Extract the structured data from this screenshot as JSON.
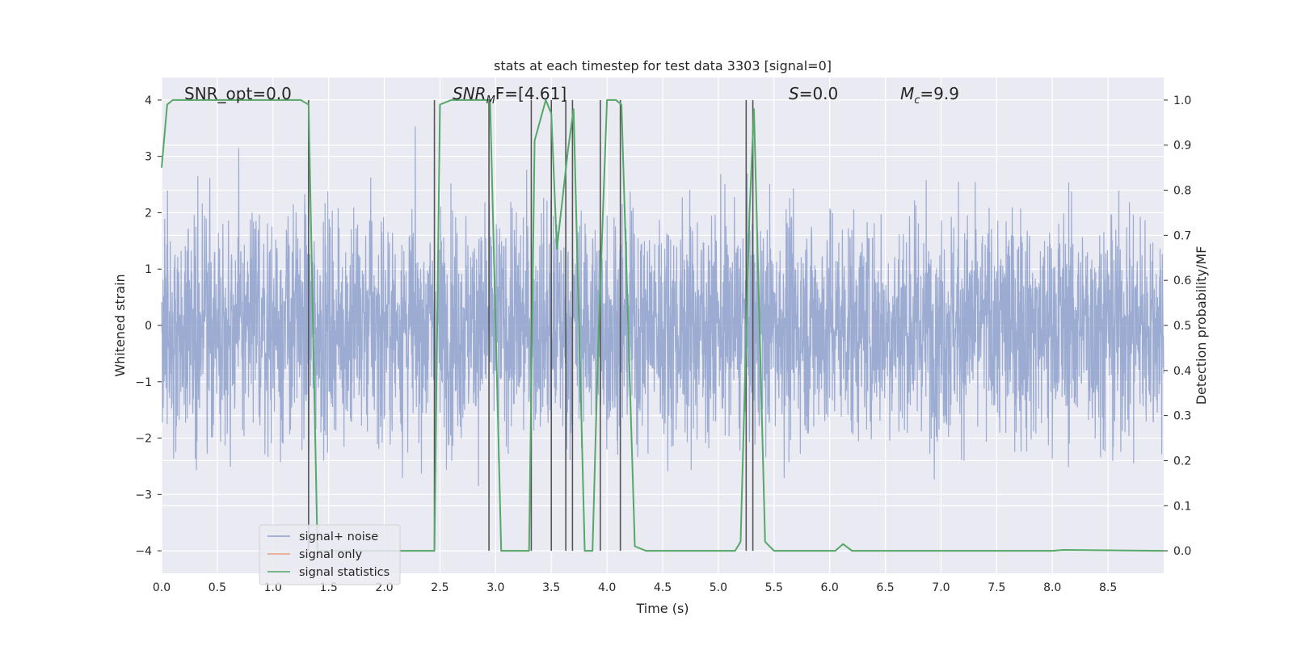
{
  "chart_data": {
    "type": "line",
    "title": "stats at each timestep for test data 3303 [signal=0]",
    "xlabel": "Time (s)",
    "ylabel_left": "Whitened strain",
    "ylabel_right": "Detection probability/MF",
    "xlim": [
      0,
      9.0
    ],
    "ylim_left": [
      -4.4,
      4.4
    ],
    "ylim_right": [
      -0.05,
      1.05
    ],
    "x_ticks": [
      "0.0",
      "0.5",
      "1.0",
      "1.5",
      "2.0",
      "2.5",
      "3.0",
      "3.5",
      "4.0",
      "4.5",
      "5.0",
      "5.5",
      "6.0",
      "6.5",
      "7.0",
      "7.5",
      "8.0",
      "8.5"
    ],
    "y_ticks_left": [
      "−4",
      "−3",
      "−2",
      "−1",
      "0",
      "1",
      "2",
      "3",
      "4"
    ],
    "y_ticks_right": [
      "0.0",
      "0.1",
      "0.2",
      "0.3",
      "0.4",
      "0.5",
      "0.6",
      "0.7",
      "0.8",
      "0.9",
      "1.0"
    ],
    "grid": true,
    "background": "#eaeaf2",
    "annotations": [
      {
        "label": "snr-opt",
        "text": "SNR_opt=0.0"
      },
      {
        "label": "snr-mf",
        "text": "SNR_MF=[4.61]",
        "main": "SNR",
        "sub": "M",
        "rest": "F=[4.61]"
      },
      {
        "label": "s-value",
        "text": "S=0.0",
        "main": "S",
        "rest": "=0.0"
      },
      {
        "label": "mc-value",
        "text": "M_c=9.9",
        "main": "M",
        "sub": "c",
        "rest": "=9.9"
      }
    ],
    "series": [
      {
        "name": "signal+ noise",
        "color": "#8da0cb",
        "axis": "left",
        "envelope_approx": {
          "max_abs": 4.0,
          "typical_range": [
            -1.6,
            1.6
          ]
        }
      },
      {
        "name": "signal only",
        "color": "#e89e7a",
        "axis": "left",
        "values": []
      },
      {
        "name": "signal statistics",
        "color": "#55a868",
        "axis": "right",
        "x": [
          0.0,
          0.05,
          0.1,
          1.25,
          1.32,
          1.4,
          2.45,
          2.5,
          2.6,
          2.95,
          3.05,
          3.2,
          3.3,
          3.35,
          3.45,
          3.5,
          3.55,
          3.65,
          3.7,
          3.8,
          3.87,
          3.92,
          4.0,
          4.08,
          4.13,
          4.25,
          4.35,
          5.15,
          5.2,
          5.28,
          5.32,
          5.42,
          5.5,
          6.0,
          6.05,
          6.12,
          6.2,
          8.0,
          8.1,
          9.0
        ],
        "y": [
          0.85,
          0.99,
          1.0,
          1.0,
          0.99,
          0.0,
          0.0,
          0.99,
          1.0,
          1.0,
          0.0,
          0.0,
          0.0,
          0.91,
          1.0,
          0.97,
          0.67,
          0.89,
          0.98,
          0.0,
          0.0,
          0.45,
          1.0,
          1.0,
          0.99,
          0.01,
          0.0,
          0.0,
          0.02,
          0.75,
          0.98,
          0.02,
          0.0,
          0.0,
          0.0,
          0.015,
          0.0,
          0.0,
          0.002,
          0.0
        ]
      }
    ],
    "vertical_lines_x": [
      1.32,
      2.45,
      2.94,
      3.32,
      3.5,
      3.63,
      3.69,
      3.94,
      4.12,
      5.25,
      5.31
    ]
  },
  "legend": {
    "items": [
      {
        "label": "signal+ noise",
        "color": "#8da0cb"
      },
      {
        "label": "signal only",
        "color": "#e89e7a"
      },
      {
        "label": "signal statistics",
        "color": "#55a868"
      }
    ]
  }
}
